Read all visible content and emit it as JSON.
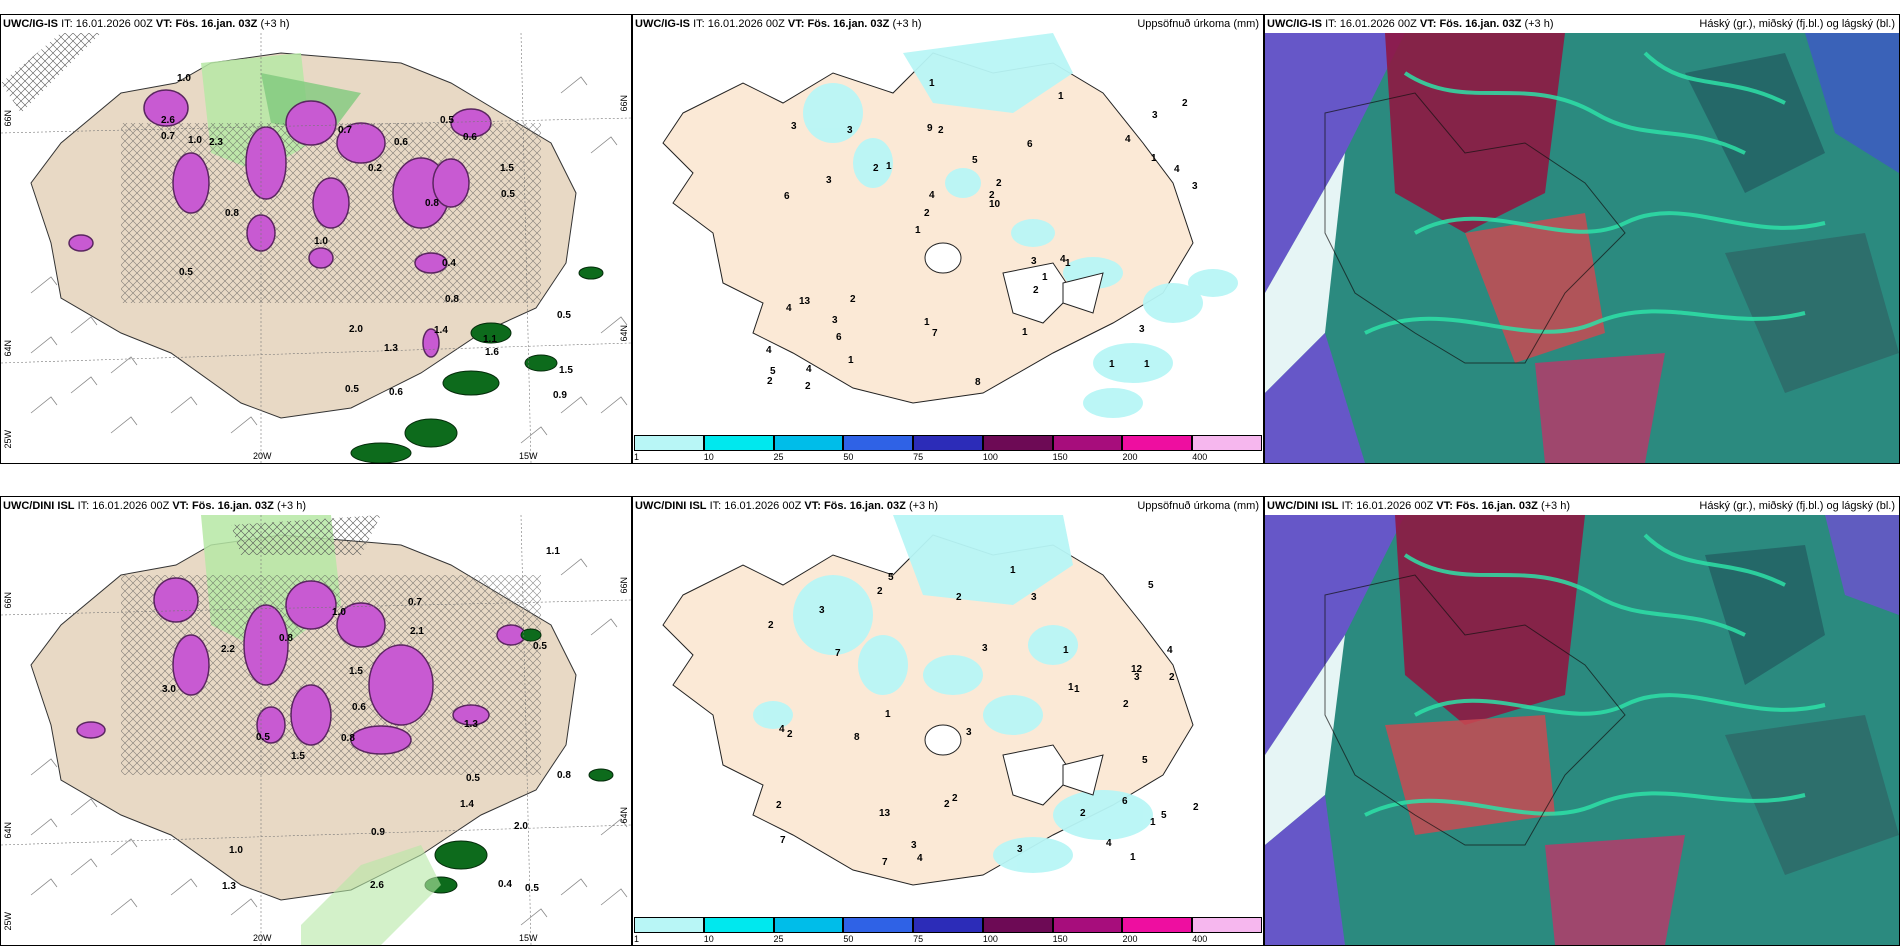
{
  "row1": {
    "panel1": {
      "model": "UWC/IG-IS",
      "it_label": "IT:",
      "it_value": "16.01.2026 00Z",
      "vt_label": "VT:",
      "vt_value": "Fös. 16.jan. 03Z",
      "lead": "(+3 h)",
      "lat_left_top": "66N",
      "lat_left_mid": "64N",
      "lat_left_bot": "25W",
      "lat_right_top": "66N",
      "lat_right_mid": "64N",
      "lon_20": "20W",
      "lon_15": "15W",
      "values": [
        "0.2",
        "1.6",
        "2.6",
        "1.5",
        "0.5",
        "0.7",
        "0.6",
        "0.5",
        "0.8",
        "0.5",
        "1.1",
        "0.6",
        "0.4",
        "1.0",
        "1.5",
        "0.6",
        "0.5",
        "1.4",
        "1.3",
        "0.8",
        "0.7",
        "2.0",
        "0.8",
        "1.0",
        "0.5",
        "2.3",
        "1.0",
        "0.9"
      ]
    },
    "panel2": {
      "model": "UWC/IG-IS",
      "it_label": "IT:",
      "it_value": "16.01.2026 00Z",
      "vt_label": "VT:",
      "vt_value": "Fös. 16.jan. 03Z",
      "lead": "(+3 h)",
      "title_right": "Uppsöfnuð úrkoma (mm)",
      "values": [
        "1",
        "6",
        "3",
        "1",
        "6",
        "4",
        "9",
        "5",
        "13",
        "1",
        "4",
        "6",
        "2",
        "2",
        "1",
        "3",
        "1",
        "3",
        "3",
        "1",
        "2",
        "1",
        "4",
        "3",
        "1",
        "2",
        "1",
        "3",
        "4",
        "8",
        "2",
        "3",
        "2",
        "1",
        "4",
        "2",
        "5",
        "7",
        "10",
        "4",
        "4",
        "2",
        "1",
        "1",
        "3",
        "2",
        "2"
      ]
    },
    "panel3": {
      "model": "UWC/IG-IS",
      "it_label": "IT:",
      "it_value": "16.01.2026 00Z",
      "vt_label": "VT:",
      "vt_value": "Fös. 16.jan. 03Z",
      "lead": "(+3 h)",
      "title_right": "Háský (gr.), miðský (fj.bl.) og lágský (bl.)"
    }
  },
  "row2": {
    "panel1": {
      "model": "UWC/DINI ISL",
      "it_label": "IT:",
      "it_value": "16.01.2026 00Z",
      "vt_label": "VT:",
      "vt_value": "Fös. 16.jan. 03Z",
      "lead": "(+3 h)",
      "lat_left_top": "66N",
      "lat_left_mid": "64N",
      "lat_left_bot": "25W",
      "lat_right_top": "66N",
      "lat_right_mid": "64N",
      "lon_20": "20W",
      "lon_15": "15W",
      "values": [
        "1.5",
        "0.5",
        "0.5",
        "2.6",
        "1.3",
        "0.8",
        "1.5",
        "0.6",
        "0.4",
        "0.5",
        "1.0",
        "2.2",
        "0.7",
        "1.1",
        "2.0",
        "1.4",
        "0.8",
        "1.0",
        "0.8",
        "0.5",
        "0.9",
        "2.1",
        "3.0",
        "1.3"
      ]
    },
    "panel2": {
      "model": "UWC/DINI ISL",
      "it_label": "IT:",
      "it_value": "16.01.2026 00Z",
      "vt_label": "VT:",
      "vt_value": "Fös. 16.jan. 03Z",
      "lead": "(+3 h)",
      "title_right": "Uppsöfnuð úrkoma (mm)",
      "values": [
        "6",
        "4",
        "5",
        "3",
        "7",
        "5",
        "12",
        "13",
        "5",
        "7",
        "2",
        "2",
        "2",
        "4",
        "2",
        "3",
        "1",
        "2",
        "2",
        "3",
        "4",
        "2",
        "3",
        "1",
        "3",
        "2",
        "1",
        "3",
        "1",
        "2",
        "8",
        "2",
        "7",
        "3",
        "5",
        "4",
        "1",
        "2",
        "1",
        "1"
      ]
    },
    "panel3": {
      "model": "UWC/DINI ISL",
      "it_label": "IT:",
      "it_value": "16.01.2026 00Z",
      "vt_label": "VT:",
      "vt_value": "Fös. 16.jan. 03Z",
      "lead": "(+3 h)",
      "title_right": "Háský (gr.), miðský (fj.bl.) og lágský (bl.)"
    }
  },
  "colorbar": {
    "ticks": [
      "1",
      "10",
      "25",
      "50",
      "75",
      "100",
      "150",
      "200",
      "400"
    ],
    "colors": [
      "#b8f6f6",
      "#00e8ee",
      "#00bde9",
      "#2f62e6",
      "#2c2cb8",
      "#6d0a55",
      "#a70d7c",
      "#ee0ea0",
      "#f6b7ee"
    ]
  }
}
